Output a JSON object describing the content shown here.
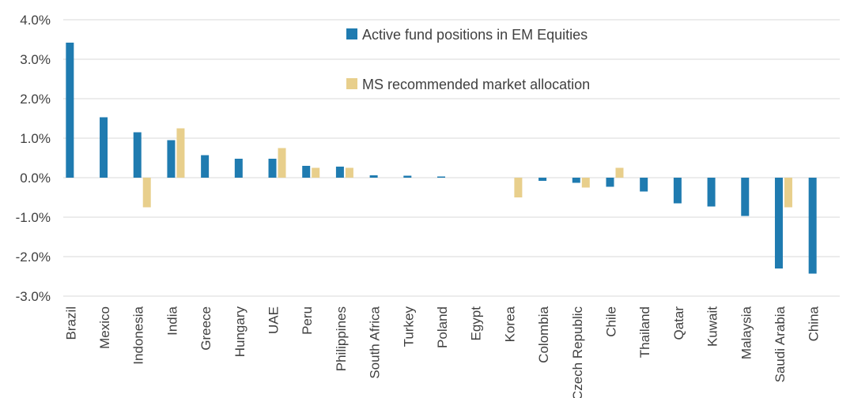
{
  "chart_data": {
    "type": "bar",
    "categories": [
      "Brazil",
      "Mexico",
      "Indonesia",
      "India",
      "Greece",
      "Hungary",
      "UAE",
      "Peru",
      "Philippines",
      "South Africa",
      "Turkey",
      "Poland",
      "Egypt",
      "Korea",
      "Colombia",
      "Czech Republic",
      "Chile",
      "Thailand",
      "Qatar",
      "Kuwait",
      "Malaysia",
      "Saudi Arabia",
      "China"
    ],
    "series": [
      {
        "name": "Active fund positions in EM Equities",
        "color": "#1f7bb0",
        "values": [
          3.42,
          1.53,
          1.15,
          0.95,
          0.57,
          0.48,
          0.48,
          0.3,
          0.28,
          0.06,
          0.05,
          0.03,
          0.0,
          0.0,
          -0.08,
          -0.13,
          -0.23,
          -0.35,
          -0.65,
          -0.73,
          -0.97,
          -2.3,
          -2.43
        ]
      },
      {
        "name": "MS recommended market allocation",
        "color": "#e8cf8c",
        "values": [
          0,
          0,
          -0.75,
          1.25,
          0,
          0,
          0.75,
          0.25,
          0.25,
          0,
          0,
          0,
          0,
          -0.5,
          0,
          -0.25,
          0.25,
          0,
          0,
          0,
          0,
          -0.75,
          0
        ]
      }
    ],
    "yticks": [
      "4.0%",
      "3.0%",
      "2.0%",
      "1.0%",
      "0.0%",
      "-1.0%",
      "-2.0%",
      "-3.0%"
    ],
    "ylim": [
      -3.0,
      4.0
    ],
    "grid": true,
    "legend_position": "top-center"
  }
}
